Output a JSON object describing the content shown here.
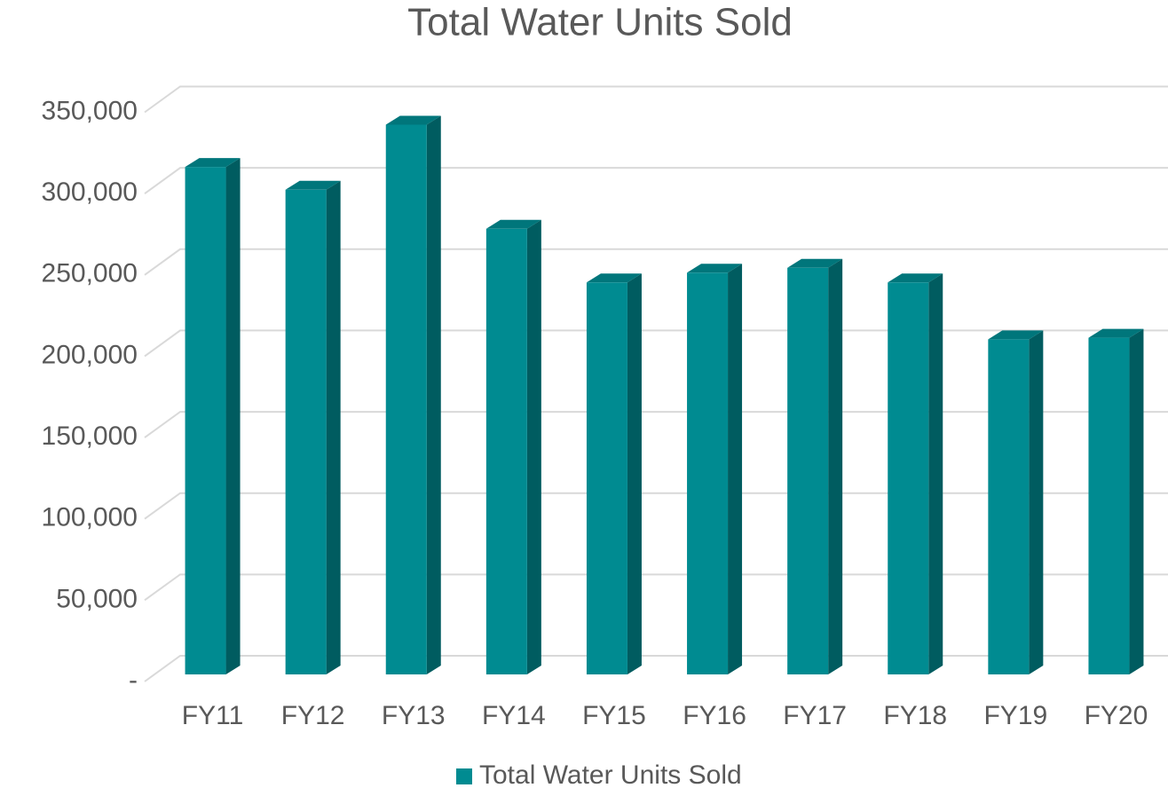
{
  "chart_data": {
    "type": "bar",
    "title": "Total Water Units Sold",
    "categories": [
      "FY11",
      "FY12",
      "FY13",
      "FY14",
      "FY15",
      "FY16",
      "FY17",
      "FY18",
      "FY19",
      "FY20"
    ],
    "series": [
      {
        "name": "Total Water Units Sold",
        "color": "#008b91",
        "values": [
          312000,
          298000,
          338000,
          274000,
          241000,
          247000,
          250000,
          241000,
          206000,
          207000
        ]
      }
    ],
    "ylim": [
      0,
      350000
    ],
    "yticks": [
      {
        "value": 0,
        "label": "-"
      },
      {
        "value": 50000,
        "label": "50,000"
      },
      {
        "value": 100000,
        "label": "100,000"
      },
      {
        "value": 150000,
        "label": "150,000"
      },
      {
        "value": 200000,
        "label": "200,000"
      },
      {
        "value": 250000,
        "label": "250,000"
      },
      {
        "value": 300000,
        "label": "300,000"
      },
      {
        "value": 350000,
        "label": "350,000"
      }
    ],
    "grid": true,
    "legend": "bottom"
  }
}
